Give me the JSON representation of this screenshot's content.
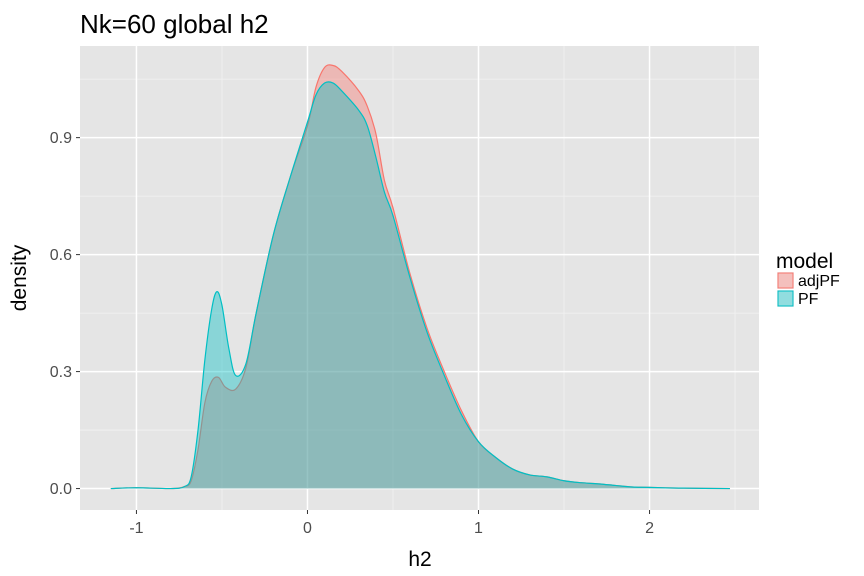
{
  "chart_data": {
    "type": "area",
    "title": "Nk=60 global h2",
    "xlabel": "h2",
    "ylabel": "density",
    "xlim": [
      -1.33,
      2.64
    ],
    "ylim": [
      -0.055,
      1.135
    ],
    "x_ticks": [
      -1,
      0,
      1,
      2
    ],
    "x_tick_labels": [
      "-1",
      "0",
      "1",
      "2"
    ],
    "y_ticks": [
      0.0,
      0.3,
      0.6,
      0.9
    ],
    "y_tick_labels": [
      "0.0",
      "0.3",
      "0.6",
      "0.9"
    ],
    "grid": true,
    "legend": {
      "title": "model",
      "position": "right"
    },
    "series": [
      {
        "name": "adjPF",
        "color": "#f8766d",
        "points": [
          [
            -1.15,
            0.0
          ],
          [
            -1.0,
            0.002
          ],
          [
            -0.8,
            0.0
          ],
          [
            -0.72,
            0.005
          ],
          [
            -0.68,
            0.02
          ],
          [
            -0.64,
            0.1
          ],
          [
            -0.6,
            0.22
          ],
          [
            -0.56,
            0.275
          ],
          [
            -0.52,
            0.285
          ],
          [
            -0.48,
            0.26
          ],
          [
            -0.42,
            0.255
          ],
          [
            -0.36,
            0.31
          ],
          [
            -0.3,
            0.45
          ],
          [
            -0.2,
            0.65
          ],
          [
            -0.1,
            0.8
          ],
          [
            0.0,
            0.93
          ],
          [
            0.05,
            1.03
          ],
          [
            0.1,
            1.08
          ],
          [
            0.15,
            1.085
          ],
          [
            0.2,
            1.07
          ],
          [
            0.3,
            1.02
          ],
          [
            0.35,
            0.98
          ],
          [
            0.4,
            0.91
          ],
          [
            0.45,
            0.79
          ],
          [
            0.5,
            0.72
          ],
          [
            0.6,
            0.55
          ],
          [
            0.7,
            0.41
          ],
          [
            0.8,
            0.3
          ],
          [
            0.9,
            0.2
          ],
          [
            1.0,
            0.12
          ],
          [
            1.1,
            0.08
          ],
          [
            1.2,
            0.05
          ],
          [
            1.3,
            0.035
          ],
          [
            1.4,
            0.03
          ],
          [
            1.5,
            0.02
          ],
          [
            1.6,
            0.015
          ],
          [
            1.7,
            0.012
          ],
          [
            1.8,
            0.008
          ],
          [
            1.9,
            0.004
          ],
          [
            2.0,
            0.003
          ],
          [
            2.2,
            0.001
          ],
          [
            2.47,
            0.0
          ]
        ]
      },
      {
        "name": "PF",
        "color": "#00bfc4",
        "points": [
          [
            -1.15,
            0.0
          ],
          [
            -1.0,
            0.002
          ],
          [
            -0.8,
            0.0
          ],
          [
            -0.72,
            0.005
          ],
          [
            -0.68,
            0.03
          ],
          [
            -0.64,
            0.15
          ],
          [
            -0.6,
            0.33
          ],
          [
            -0.56,
            0.46
          ],
          [
            -0.53,
            0.505
          ],
          [
            -0.5,
            0.47
          ],
          [
            -0.46,
            0.36
          ],
          [
            -0.42,
            0.29
          ],
          [
            -0.36,
            0.32
          ],
          [
            -0.3,
            0.45
          ],
          [
            -0.2,
            0.65
          ],
          [
            -0.1,
            0.8
          ],
          [
            0.0,
            0.94
          ],
          [
            0.05,
            1.01
          ],
          [
            0.1,
            1.04
          ],
          [
            0.15,
            1.04
          ],
          [
            0.2,
            1.02
          ],
          [
            0.3,
            0.97
          ],
          [
            0.35,
            0.93
          ],
          [
            0.4,
            0.85
          ],
          [
            0.45,
            0.76
          ],
          [
            0.5,
            0.7
          ],
          [
            0.6,
            0.54
          ],
          [
            0.7,
            0.4
          ],
          [
            0.8,
            0.29
          ],
          [
            0.9,
            0.19
          ],
          [
            1.0,
            0.12
          ],
          [
            1.1,
            0.08
          ],
          [
            1.2,
            0.05
          ],
          [
            1.3,
            0.035
          ],
          [
            1.4,
            0.03
          ],
          [
            1.5,
            0.02
          ],
          [
            1.6,
            0.015
          ],
          [
            1.7,
            0.012
          ],
          [
            1.8,
            0.008
          ],
          [
            1.9,
            0.004
          ],
          [
            2.0,
            0.003
          ],
          [
            2.2,
            0.001
          ],
          [
            2.47,
            0.0
          ]
        ]
      }
    ]
  },
  "colors": {
    "panel_background": "#e5e5e5",
    "grid_major": "#ffffff",
    "grid_minor": "#f2f2f2",
    "adjPF_fill": "#f8766d",
    "PF_fill": "#00bfc4"
  }
}
